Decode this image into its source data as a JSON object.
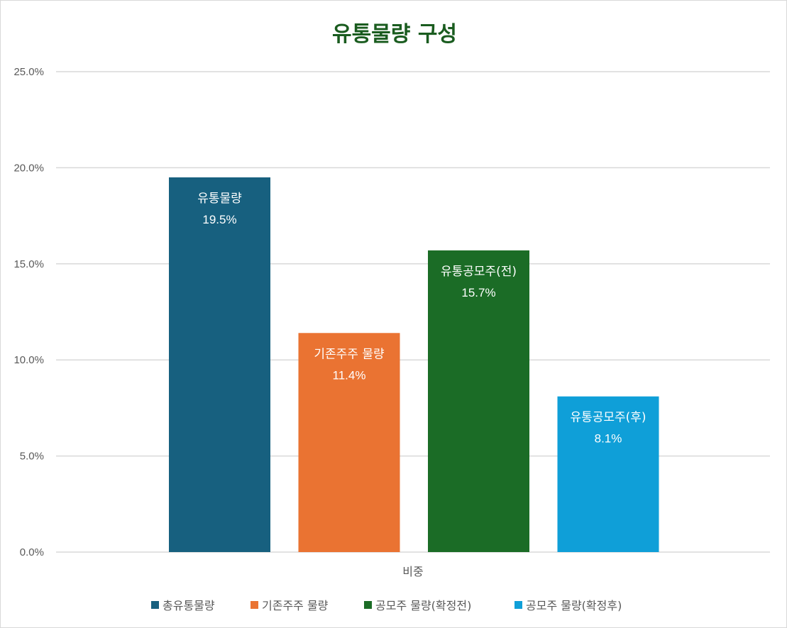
{
  "chart_data": {
    "type": "bar",
    "title": "유통물량 구성",
    "categories": [
      "비중"
    ],
    "xlabel": "",
    "ylabel": "",
    "ylim": [
      0,
      25
    ],
    "y_ticks": [
      "0.0%",
      "5.0%",
      "10.0%",
      "15.0%",
      "20.0%",
      "25.0%"
    ],
    "y_tick_values": [
      0,
      5,
      10,
      15,
      20,
      25
    ],
    "grid": true,
    "legend_position": "bottom",
    "series": [
      {
        "name": "총유통물량",
        "values": [
          19.5
        ],
        "data_label_name": "유통물량",
        "data_label_value": "19.5%",
        "color": "#17607f"
      },
      {
        "name": "기존주주 물량",
        "values": [
          11.4
        ],
        "data_label_name": "기존주주 물량",
        "data_label_value": "11.4%",
        "color": "#ea7332"
      },
      {
        "name": "공모주 물량(확정전)",
        "values": [
          15.7
        ],
        "data_label_name": "유통공모주(전)",
        "data_label_value": "15.7%",
        "color": "#1b6c26"
      },
      {
        "name": "공모주 물량(확정후)",
        "values": [
          8.1
        ],
        "data_label_name": "유통공모주(후)",
        "data_label_value": "8.1%",
        "color": "#0f9fd8"
      }
    ]
  }
}
